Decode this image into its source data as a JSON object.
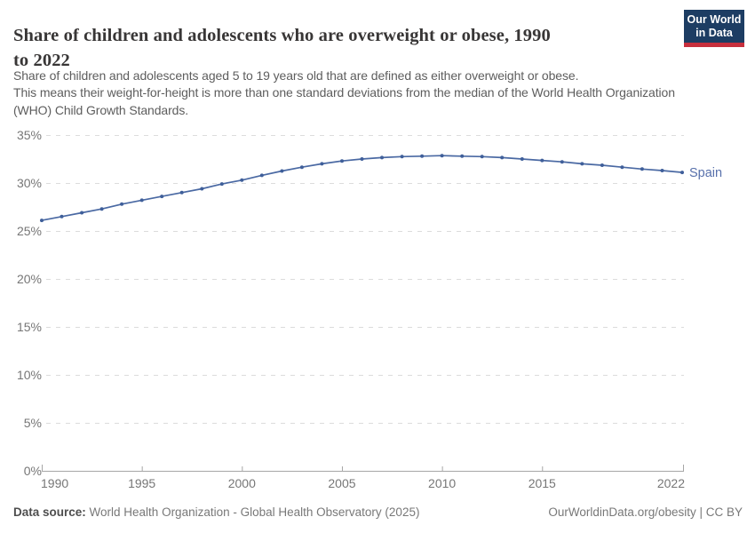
{
  "header": {
    "title_line1": "Share of children and adolescents who are overweight or obese, 1990",
    "title_line2": "to 2022",
    "subtitle_line1": "Share of children and adolescents aged 5 to 19 years old that are defined as either overweight or obese.",
    "subtitle_line2": "This means their weight-for-height is more than one standard deviations from the median of the World Health Organization",
    "subtitle_line3": "(WHO) Child Growth Standards."
  },
  "logo": {
    "line1": "Our World",
    "line2": "in Data",
    "bg_color": "#1d3d63",
    "accent_color": "#c72f3d"
  },
  "chart_data": {
    "type": "line",
    "title": "Share of children and adolescents who are overweight or obese, 1990 to 2022",
    "x": [
      1990,
      1991,
      1992,
      1993,
      1994,
      1995,
      1996,
      1997,
      1998,
      1999,
      2000,
      2001,
      2002,
      2003,
      2004,
      2005,
      2006,
      2007,
      2008,
      2009,
      2010,
      2011,
      2012,
      2013,
      2014,
      2015,
      2016,
      2017,
      2018,
      2019,
      2020,
      2021,
      2022
    ],
    "series": [
      {
        "name": "Spain",
        "color": "#4a69a3",
        "point_color": "#3f5f9a",
        "label_color": "#5770ab",
        "values": [
          26.1,
          26.5,
          26.9,
          27.3,
          27.8,
          28.2,
          28.6,
          29.0,
          29.4,
          29.9,
          30.3,
          30.8,
          31.25,
          31.65,
          32.0,
          32.3,
          32.5,
          32.65,
          32.75,
          32.8,
          32.85,
          32.8,
          32.75,
          32.65,
          32.5,
          32.35,
          32.2,
          32.0,
          31.85,
          31.65,
          31.45,
          31.3,
          31.1
        ]
      }
    ],
    "xlabel": "",
    "ylabel": "",
    "ylim": [
      0,
      35
    ],
    "yticks": [
      0,
      5,
      10,
      15,
      20,
      25,
      30,
      35
    ],
    "ytick_labels": [
      "0%",
      "5%",
      "10%",
      "15%",
      "20%",
      "25%",
      "30%",
      "35%"
    ],
    "xticks": [
      1990,
      1995,
      2000,
      2005,
      2010,
      2015,
      2022
    ],
    "xtick_labels": [
      "1990",
      "1995",
      "2000",
      "2005",
      "2010",
      "2015",
      "2022"
    ],
    "grid": "horizontal-dashed",
    "legend_position": "end-of-line-label"
  },
  "colors": {
    "grid": "#dcdcdc",
    "axis": "#a6a6a6",
    "tick_text": "#767676"
  },
  "footer": {
    "datasource_label": "Data source:",
    "datasource_text": " World Health Organization - Global Health Observatory (2025)",
    "rights": "OurWorldinData.org/obesity | CC BY"
  }
}
